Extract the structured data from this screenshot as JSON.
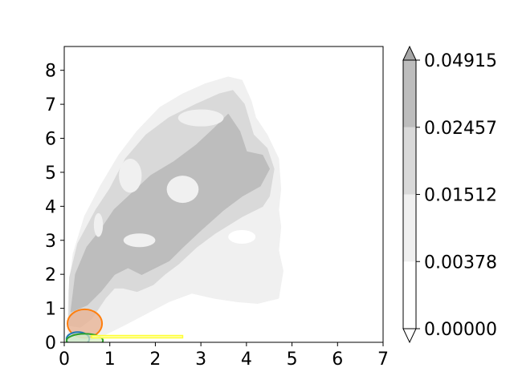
{
  "chart_data": {
    "type": "contour",
    "title": "",
    "xlabel": "",
    "ylabel": "",
    "xlim": [
      0,
      7
    ],
    "ylim": [
      0,
      8.7
    ],
    "x_ticks": [
      "0",
      "1",
      "2",
      "3",
      "4",
      "5",
      "6",
      "7"
    ],
    "y_ticks": [
      "0",
      "1",
      "2",
      "3",
      "4",
      "5",
      "6",
      "7",
      "8"
    ],
    "colorbar": {
      "levels": [
        "0.00000",
        "0.00378",
        "0.01512",
        "0.02457",
        "0.04915"
      ],
      "level_values": [
        0.0,
        0.00378,
        0.01512,
        0.02457,
        0.04915
      ],
      "colors": [
        "#ffffff",
        "#f0f0f0",
        "#d9d9d9",
        "#bdbdbd",
        "#a6a6a6"
      ],
      "extend": "both"
    },
    "contour_bands": [
      {
        "level_index": 1,
        "polygons": [
          [
            [
              0.08,
              0.0
            ],
            [
              0.1,
              1.5
            ],
            [
              0.2,
              2.6
            ],
            [
              0.45,
              3.7
            ],
            [
              0.8,
              4.6
            ],
            [
              1.2,
              5.5
            ],
            [
              1.6,
              6.2
            ],
            [
              2.1,
              6.9
            ],
            [
              2.6,
              7.3
            ],
            [
              3.1,
              7.6
            ],
            [
              3.6,
              7.8
            ],
            [
              3.9,
              7.7
            ],
            [
              4.1,
              7.1
            ],
            [
              4.2,
              6.6
            ],
            [
              4.45,
              6.1
            ],
            [
              4.7,
              5.4
            ],
            [
              4.75,
              4.5
            ],
            [
              4.7,
              3.9
            ],
            [
              4.75,
              3.4
            ],
            [
              4.7,
              2.7
            ],
            [
              4.8,
              2.1
            ],
            [
              4.7,
              1.3
            ],
            [
              4.25,
              1.15
            ],
            [
              3.8,
              1.2
            ],
            [
              3.3,
              1.3
            ],
            [
              2.8,
              1.45
            ],
            [
              2.3,
              1.2
            ],
            [
              1.8,
              0.85
            ],
            [
              1.3,
              0.5
            ],
            [
              0.85,
              0.2
            ],
            [
              0.5,
              0.05
            ]
          ]
        ]
      },
      {
        "level_index": 2,
        "polygons": [
          [
            [
              0.1,
              0.5
            ],
            [
              0.12,
              1.9
            ],
            [
              0.3,
              2.9
            ],
            [
              0.7,
              3.9
            ],
            [
              1.0,
              4.5
            ],
            [
              1.35,
              5.4
            ],
            [
              1.8,
              6.1
            ],
            [
              2.3,
              6.6
            ],
            [
              2.9,
              7.0
            ],
            [
              3.4,
              7.3
            ],
            [
              3.7,
              7.4
            ],
            [
              3.95,
              7.0
            ],
            [
              4.15,
              6.1
            ],
            [
              4.45,
              5.7
            ],
            [
              4.6,
              5.1
            ],
            [
              4.5,
              4.3
            ],
            [
              4.35,
              4.0
            ],
            [
              3.9,
              3.7
            ],
            [
              3.3,
              3.2
            ],
            [
              2.9,
              2.8
            ],
            [
              2.5,
              2.3
            ],
            [
              2.2,
              2.0
            ],
            [
              1.95,
              1.7
            ],
            [
              1.6,
              1.5
            ],
            [
              1.3,
              1.6
            ],
            [
              1.1,
              1.6
            ],
            [
              0.9,
              1.3
            ],
            [
              0.6,
              0.7
            ],
            [
              0.35,
              0.45
            ]
          ]
        ]
      },
      {
        "level_index": 3,
        "polygons": [
          [
            [
              0.15,
              0.9
            ],
            [
              0.25,
              2.0
            ],
            [
              0.5,
              2.8
            ],
            [
              0.8,
              3.3
            ],
            [
              1.1,
              3.9
            ],
            [
              1.5,
              4.4
            ],
            [
              1.9,
              4.9
            ],
            [
              2.4,
              5.3
            ],
            [
              2.9,
              5.8
            ],
            [
              3.3,
              6.3
            ],
            [
              3.6,
              6.7
            ],
            [
              3.85,
              6.2
            ],
            [
              4.0,
              5.6
            ],
            [
              4.35,
              5.5
            ],
            [
              4.5,
              5.1
            ],
            [
              4.3,
              4.6
            ],
            [
              3.9,
              4.3
            ],
            [
              3.5,
              3.9
            ],
            [
              3.0,
              3.3
            ],
            [
              2.6,
              2.8
            ],
            [
              2.3,
              2.4
            ],
            [
              2.0,
              2.2
            ],
            [
              1.7,
              2.0
            ],
            [
              1.4,
              2.2
            ],
            [
              1.1,
              2.0
            ],
            [
              0.8,
              1.5
            ],
            [
              0.5,
              1.1
            ]
          ]
        ]
      }
    ],
    "light_holes": [
      {
        "center": [
          0.75,
          3.45
        ],
        "rx": 0.1,
        "ry": 0.35,
        "level_index": 1
      },
      {
        "center": [
          1.65,
          3.0
        ],
        "rx": 0.35,
        "ry": 0.2,
        "level_index": 1
      },
      {
        "center": [
          2.6,
          4.5
        ],
        "rx": 0.35,
        "ry": 0.4,
        "level_index": 1
      },
      {
        "center": [
          1.45,
          4.9
        ],
        "rx": 0.25,
        "ry": 0.5,
        "level_index": 1
      },
      {
        "center": [
          3.0,
          6.6
        ],
        "rx": 0.5,
        "ry": 0.25,
        "level_index": 1
      },
      {
        "center": [
          3.9,
          3.1
        ],
        "rx": 0.3,
        "ry": 0.2,
        "level_index": 0
      }
    ],
    "overlays": [
      {
        "shape": "ellipse",
        "center": [
          0.45,
          0.55
        ],
        "rx": 0.38,
        "ry": 0.42,
        "stroke": "#ff7f0e",
        "fill": "#e8b090",
        "fill_opacity": 0.75
      },
      {
        "shape": "ellipse",
        "center": [
          0.3,
          0.1
        ],
        "rx": 0.25,
        "ry": 0.2,
        "stroke": "#1f77b4",
        "fill": "#bfd9f0",
        "fill_opacity": 0.7
      },
      {
        "shape": "ellipse",
        "center": [
          0.45,
          0.05
        ],
        "rx": 0.4,
        "ry": 0.2,
        "stroke": "#2ca02c",
        "fill": "#d5eec0",
        "fill_opacity": 0.7
      },
      {
        "shape": "band",
        "x": [
          0.6,
          2.6
        ],
        "y": [
          0.13,
          0.2
        ],
        "stroke": "#ffff33",
        "fill": "#ffffb0",
        "fill_opacity": 0.9
      }
    ]
  }
}
